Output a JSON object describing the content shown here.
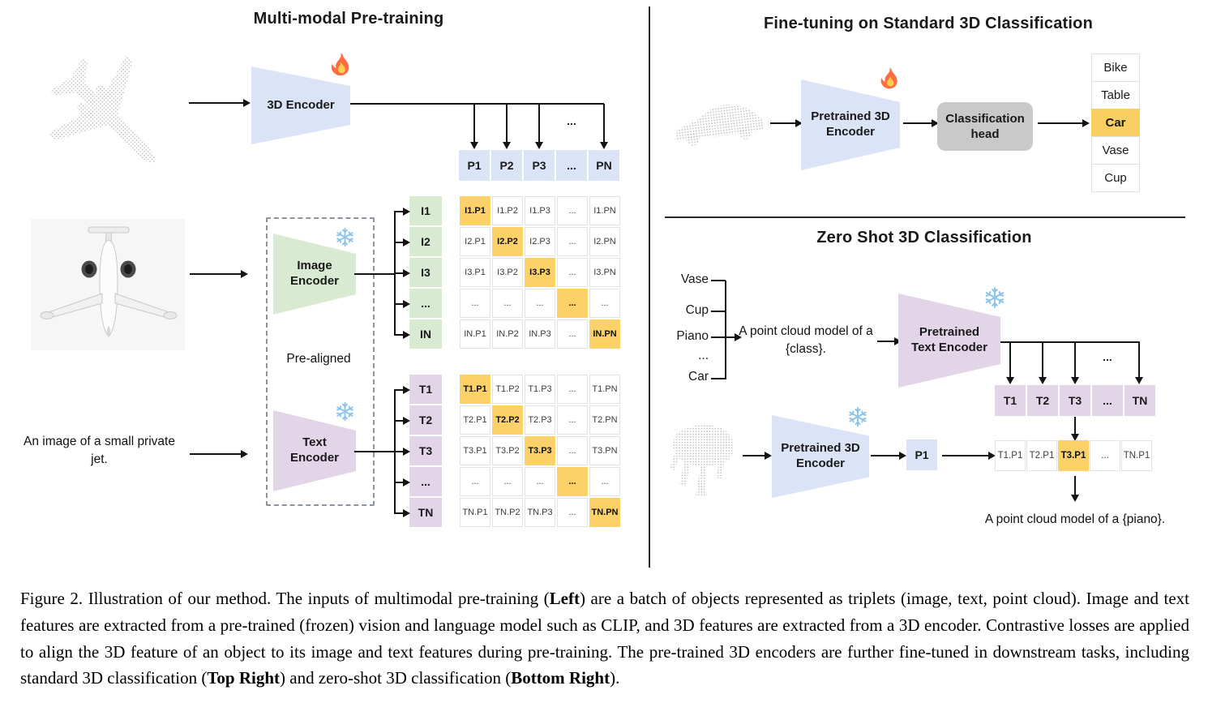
{
  "ellipsis": "...",
  "colors": {
    "blue": "#dbe4f6",
    "green": "#d9ead3",
    "purple": "#e1d5e7",
    "orange": "#fcd167",
    "head_gray": "#c9c9c9"
  },
  "pretraining": {
    "title": "Multi-modal Pre-training",
    "encoder3d": "3D Encoder",
    "image_encoder": "Image Encoder",
    "text_encoder": "Text Encoder",
    "prealigned": "Pre-aligned",
    "image_caption": "An image of a small private jet.",
    "p_row": [
      "P1",
      "P2",
      "P3",
      "...",
      "PN"
    ],
    "image_matrix": {
      "row_labels": [
        "I1",
        "I2",
        "I3",
        "...",
        "IN"
      ],
      "cells": [
        [
          "I1.P1",
          "I1.P2",
          "I1.P3",
          "...",
          "I1.PN"
        ],
        [
          "I2.P1",
          "I2.P2",
          "I2.P3",
          "...",
          "I2.PN"
        ],
        [
          "I3.P1",
          "I3.P2",
          "I3.P3",
          "...",
          "I3.PN"
        ],
        [
          "...",
          "...",
          "...",
          "...",
          "..."
        ],
        [
          "IN.P1",
          "IN.P2",
          "IN.P3",
          "...",
          "IN.PN"
        ]
      ]
    },
    "text_matrix": {
      "row_labels": [
        "T1",
        "T2",
        "T3",
        "...",
        "TN"
      ],
      "cells": [
        [
          "T1.P1",
          "T1.P2",
          "T1.P3",
          "...",
          "T1.PN"
        ],
        [
          "T2.P1",
          "T2.P2",
          "T2.P3",
          "...",
          "T2.PN"
        ],
        [
          "T3.P1",
          "T3.P2",
          "T3.P3",
          "...",
          "T3.PN"
        ],
        [
          "...",
          "...",
          "...",
          "...",
          "..."
        ],
        [
          "TN.P1",
          "TN.P2",
          "TN.P3",
          "...",
          "TN.PN"
        ]
      ]
    }
  },
  "finetuning": {
    "title": "Fine-tuning on Standard 3D Classification",
    "encoder": "Pretrained 3D Encoder",
    "head": "Classification head",
    "classes": [
      "Bike",
      "Table",
      "Car",
      "Vase",
      "Cup"
    ],
    "predicted_class": "Car"
  },
  "zeroshot": {
    "title": "Zero Shot 3D Classification",
    "classes": [
      "Vase",
      "Cup",
      "Piano",
      "...",
      "Car"
    ],
    "prompt": "A point cloud model of a {class}.",
    "text_encoder": "Pretrained Text Encoder",
    "encoder3d": "Pretrained 3D Encoder",
    "p_cell": "P1",
    "t_row": [
      "T1",
      "T2",
      "T3",
      "...",
      "TN"
    ],
    "result_row": [
      "T1.P1",
      "T2.P1",
      "T3.P1",
      "...",
      "TN.P1"
    ],
    "highlight_index": 2,
    "result_text": "A point cloud model of a {piano}."
  },
  "caption": {
    "segments": [
      {
        "t": "Figure 2. Illustration of our method. The inputs of multimodal pre-training ("
      },
      {
        "t": "Left",
        "b": true
      },
      {
        "t": ") are a batch of objects represented as triplets (image, text, point cloud). Image and text features are extracted from a pre-trained (frozen) vision and language model such as CLIP, and 3D features are extracted from a 3D encoder. Contrastive losses are applied to align the 3D feature of an object to its image and text features during pre-training. The pre-trained 3D encoders are further fine-tuned in downstream tasks, including standard 3D classification ("
      },
      {
        "t": "Top Right",
        "b": true
      },
      {
        "t": ") and zero-shot 3D classification ("
      },
      {
        "t": "Bottom Right",
        "b": true
      },
      {
        "t": ")."
      }
    ]
  }
}
